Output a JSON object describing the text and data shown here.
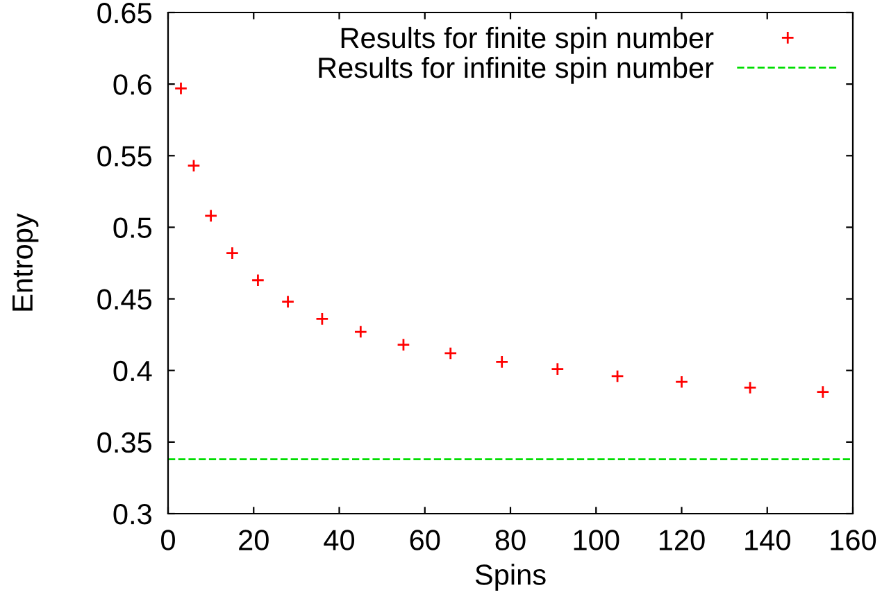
{
  "chart_data": {
    "type": "scatter",
    "xlabel": "Spins",
    "ylabel": "Entropy",
    "x": [
      3,
      6,
      10,
      15,
      21,
      28,
      36,
      45,
      55,
      66,
      78,
      91,
      105,
      120,
      136,
      153
    ],
    "series": [
      {
        "name": "Results for finite spin number",
        "color": "#ff0000",
        "values": [
          0.597,
          0.543,
          0.508,
          0.482,
          0.463,
          0.448,
          0.436,
          0.427,
          0.418,
          0.412,
          0.406,
          0.401,
          0.396,
          0.392,
          0.388,
          0.385
        ]
      }
    ],
    "ref_lines": [
      {
        "axis": "y",
        "value": 0.338,
        "label": "Results for infinite spin number",
        "color": "#00dd00",
        "line_style": "dashed"
      }
    ],
    "marker": "cross",
    "legend": "top right",
    "grid": false,
    "xlim": [
      0,
      160
    ],
    "ylim": [
      0.3,
      0.65
    ],
    "xticks": [
      0,
      20,
      40,
      60,
      80,
      100,
      120,
      140,
      160
    ],
    "yticks": [
      0.3,
      0.35,
      0.4,
      0.45,
      0.5,
      0.55,
      0.6,
      0.65
    ]
  }
}
